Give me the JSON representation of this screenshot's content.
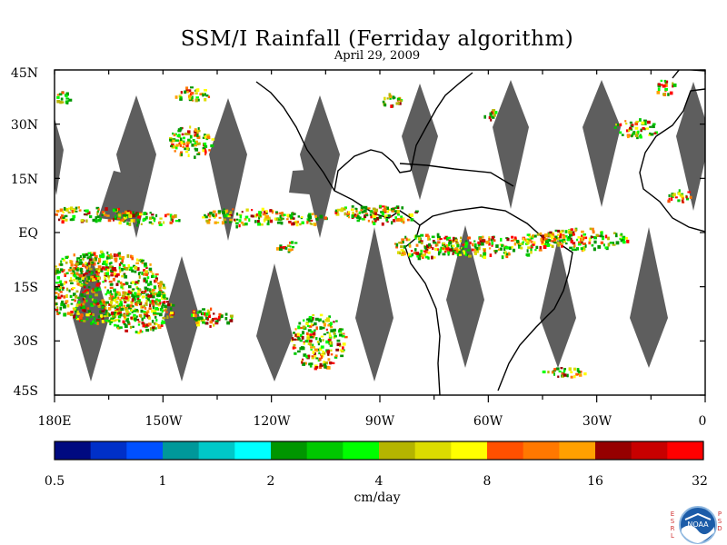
{
  "title": "SSM/I Rainfall (Ferriday algorithm)",
  "subtitle": "April 29, 2009",
  "axes": {
    "y_ticks": [
      "45N",
      "30N",
      "15N",
      "EQ",
      "15S",
      "30S",
      "45S"
    ],
    "x_ticks": [
      "180E",
      "150W",
      "120W",
      "90W",
      "60W",
      "30W",
      "0"
    ]
  },
  "colorbar": {
    "labels": [
      "0.5",
      "1",
      "2",
      "4",
      "8",
      "16",
      "32"
    ],
    "units": "cm/day",
    "colors": [
      "#000a80",
      "#0030c8",
      "#0050ff",
      "#00989a",
      "#00c8c8",
      "#00ffff",
      "#009600",
      "#00c800",
      "#00ff00",
      "#b4b400",
      "#dcdc00",
      "#ffff00",
      "#ff5000",
      "#ff7800",
      "#ffa000",
      "#960000",
      "#c80000",
      "#ff0000"
    ]
  },
  "colors": {
    "swath_gap": "#5e5e5e",
    "coast": "#000000"
  },
  "logo": {
    "left_letters": "ESRL",
    "right_letters": "PSD",
    "badge_text": "NOAA"
  }
}
